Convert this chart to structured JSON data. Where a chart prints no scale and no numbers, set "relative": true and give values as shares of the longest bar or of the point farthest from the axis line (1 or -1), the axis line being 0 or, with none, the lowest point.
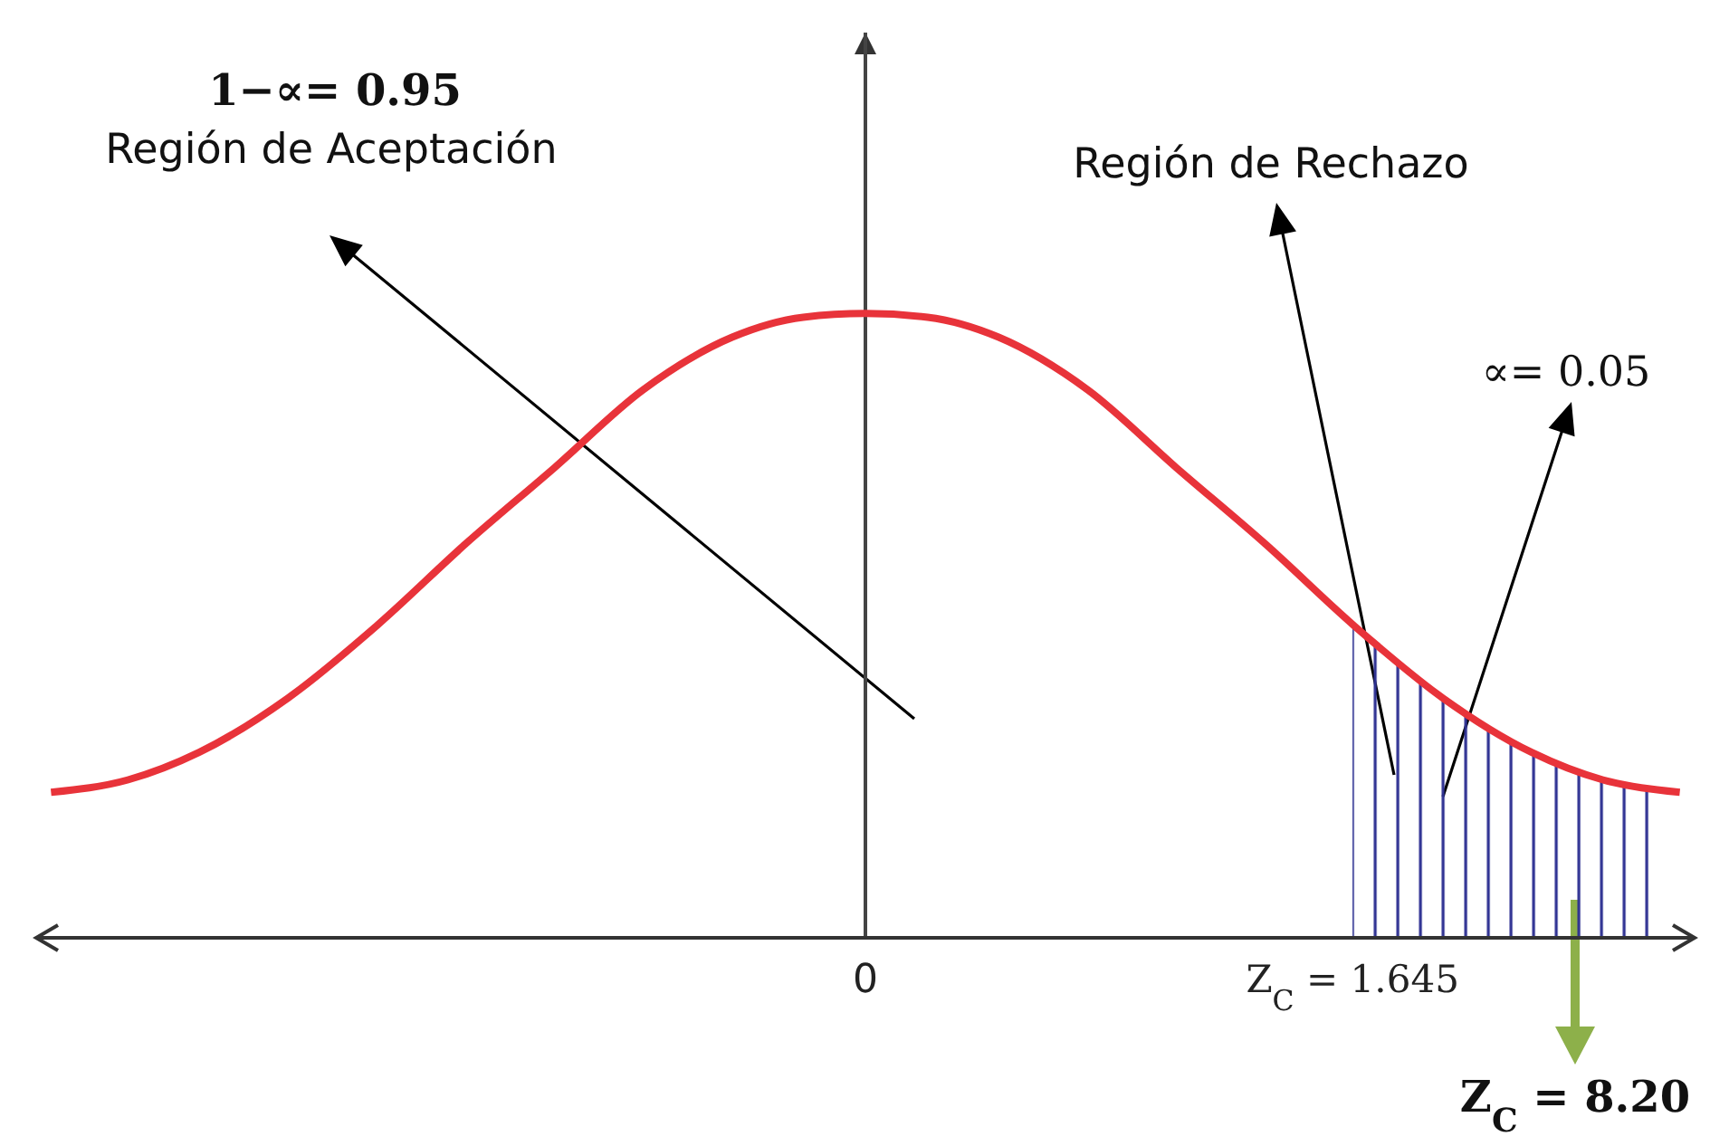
{
  "chart_data": {
    "type": "line",
    "relative": true,
    "x": [
      -2.75,
      -2.49,
      -2.25,
      -1.95,
      -1.65,
      -1.35,
      -1.05,
      -0.75,
      -0.45,
      -0.21,
      0,
      0.21,
      0.45,
      0.75,
      1.05,
      1.35,
      1.65,
      1.95,
      2.25,
      2.49,
      2.75
    ],
    "series": [
      {
        "color": "#e8333a",
        "values": [
          0.233,
          0.253,
          0.297,
          0.384,
          0.5,
          0.631,
          0.753,
          0.878,
          0.962,
          0.994,
          1,
          0.994,
          0.962,
          0.878,
          0.753,
          0.631,
          0.5,
          0.384,
          0.297,
          0.253,
          0.233
        ]
      }
    ],
    "xlim": [
      -2.8,
      2.8
    ],
    "xticks": [
      0,
      {
        "value": 1.645,
        "label": "Z$_{C}$ = 1.645"
      }
    ],
    "ref_lines": [
      {
        "axis": "x",
        "value": 0,
        "color": "#444444"
      }
    ],
    "bands": [
      {
        "axis": "x",
        "from": 1.645,
        "to": 2.67,
        "color": "#2e3192"
      }
    ],
    "annotations": [
      "1−∝= 0.95",
      "Región de Aceptación",
      "Región de Rechazo",
      "∝= 0.05",
      "Z$_{C}$ = 8.20"
    ],
    "marker": "none",
    "line_style": "solid"
  }
}
